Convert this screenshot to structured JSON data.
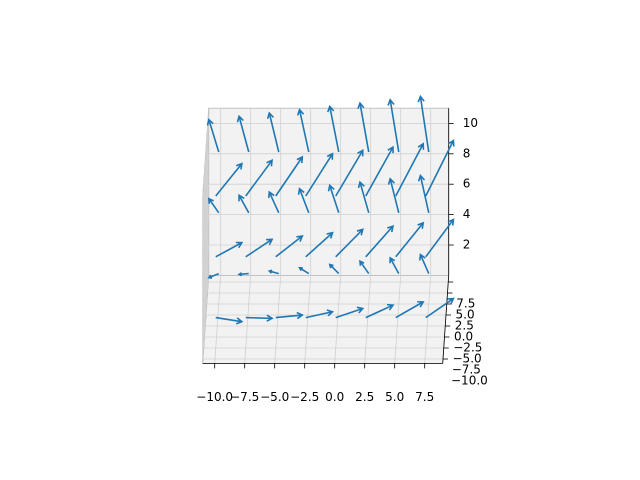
{
  "chart_data": {
    "type": "quiver3d",
    "color": "#1f77b4",
    "xlim": [
      -11,
      9
    ],
    "ylim": [
      -11,
      9
    ],
    "zlim": [
      0,
      11
    ],
    "xticks": [
      {
        "value": -10,
        "label": "−10.0"
      },
      {
        "value": -7.5,
        "label": "−7.5"
      },
      {
        "value": -5,
        "label": "−5.0"
      },
      {
        "value": -2.5,
        "label": "−2.5"
      },
      {
        "value": 0,
        "label": "0.0"
      },
      2.5,
      {
        "value": 5,
        "label": "5.0"
      },
      7.5
    ],
    "yticks": [
      {
        "value": -10,
        "label": "−10.0"
      },
      {
        "value": -7.5,
        "label": "−7.5"
      },
      {
        "value": -5,
        "label": "−5.0"
      },
      {
        "value": -2.5,
        "label": "−2.5"
      },
      {
        "value": 0,
        "label": "0.0"
      },
      2.5,
      {
        "value": 5,
        "label": "5.0"
      },
      7.5
    ],
    "zticks": [
      2,
      4,
      6,
      8,
      10
    ],
    "grid": true,
    "x": [
      -10,
      -7.5,
      -5,
      -2.5,
      0,
      2.5,
      5,
      7.5,
      -10,
      -7.5,
      -5,
      -2.5,
      0,
      2.5,
      5,
      7.5,
      -10,
      -7.5,
      -5,
      -2.5,
      0,
      2.5,
      5,
      7.5,
      -10,
      -7.5,
      -5,
      -2.5,
      0,
      2.5,
      5,
      7.5,
      -10,
      -7.5,
      -5,
      -2.5,
      0,
      2.5,
      5,
      7.5,
      -10,
      -7.5,
      -5,
      -2.5,
      0,
      2.5,
      5,
      7.5
    ],
    "y": [
      -7.5,
      -7.5,
      -7.5,
      -7.5,
      -7.5,
      -7.5,
      -7.5,
      -7.5,
      2.5,
      2.5,
      2.5,
      2.5,
      2.5,
      2.5,
      2.5,
      2.5,
      -7.5,
      -7.5,
      -7.5,
      -7.5,
      -7.5,
      -7.5,
      -7.5,
      -7.5,
      2.5,
      2.5,
      2.5,
      2.5,
      2.5,
      2.5,
      2.5,
      2.5,
      -7.5,
      -7.5,
      -7.5,
      -7.5,
      -7.5,
      -7.5,
      -7.5,
      -7.5,
      2.5,
      2.5,
      2.5,
      2.5,
      2.5,
      2.5,
      2.5,
      2.5
    ],
    "z": [
      2,
      2,
      2,
      2,
      2,
      2,
      2,
      2,
      2,
      2,
      2,
      2,
      2,
      2,
      2,
      2,
      6,
      6,
      6,
      6,
      6,
      6,
      6,
      6,
      6,
      6,
      6,
      6,
      6,
      6,
      6,
      6,
      10,
      10,
      10,
      10,
      10,
      10,
      10,
      10,
      10,
      10,
      10,
      10,
      10,
      10,
      10,
      10
    ],
    "u": [
      2.25,
      2.25,
      2.25,
      2.25,
      2.25,
      2.25,
      2.25,
      2.25,
      -0.75,
      -0.75,
      -0.75,
      -0.75,
      -0.75,
      -0.75,
      -0.75,
      -0.75,
      2.25,
      2.25,
      2.25,
      2.25,
      2.25,
      2.25,
      2.25,
      2.25,
      -0.75,
      -0.75,
      -0.75,
      -0.75,
      -0.75,
      -0.75,
      -0.75,
      -0.75,
      2.25,
      2.25,
      2.25,
      2.25,
      2.25,
      2.25,
      2.25,
      2.25,
      -0.75,
      -0.75,
      -0.75,
      -0.75,
      -0.75,
      -0.75,
      -0.75,
      -0.75
    ],
    "v": [
      -3,
      -2.25,
      -1.5,
      -0.75,
      0,
      0.75,
      1.5,
      2.25,
      -3,
      -2.25,
      -1.5,
      -0.75,
      0,
      0.75,
      1.5,
      2.25,
      -3,
      -2.25,
      -1.5,
      -0.75,
      0,
      0.75,
      1.5,
      2.25,
      -3,
      -2.25,
      -1.5,
      -0.75,
      0,
      0.75,
      1.5,
      2.25,
      -3,
      -2.25,
      -1.5,
      -0.75,
      0,
      0.75,
      1.5,
      2.25,
      -3,
      -2.25,
      -1.5,
      -0.75,
      0,
      0.75,
      1.5,
      2.25
    ],
    "w": [
      0.6,
      0.6,
      0.6,
      0.6,
      0.6,
      0.6,
      0.6,
      0.6,
      0.6,
      0.6,
      0.6,
      0.6,
      0.6,
      0.6,
      0.6,
      0.6,
      1.8,
      1.8,
      1.8,
      1.8,
      1.8,
      1.8,
      1.8,
      1.8,
      1.8,
      1.8,
      1.8,
      1.8,
      1.8,
      1.8,
      1.8,
      1.8,
      3,
      3,
      3,
      3,
      3,
      3,
      3,
      3,
      3,
      3,
      3,
      3,
      3,
      3,
      3,
      3
    ]
  }
}
